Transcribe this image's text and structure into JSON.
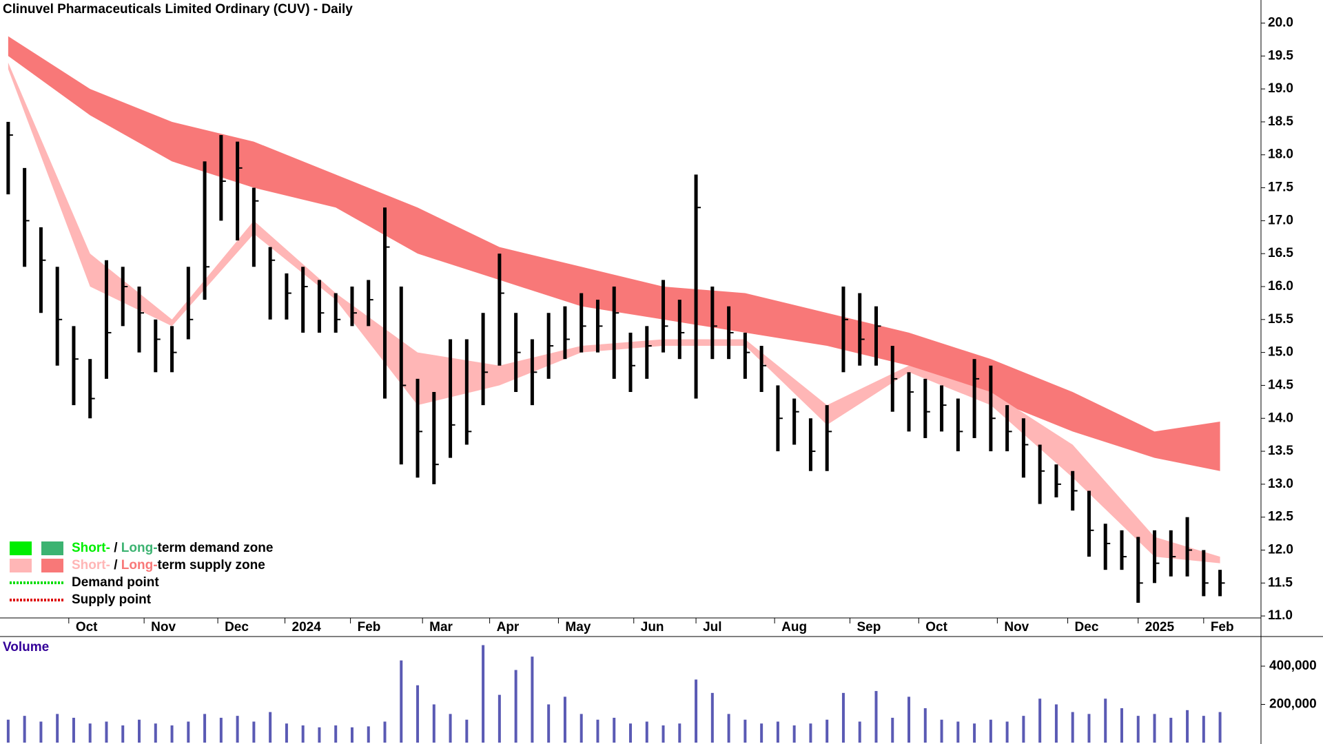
{
  "chart_data": [
    {
      "type": "candlestick",
      "title": "Clinuvel Pharmaceuticals Limited Ordinary (CUV) - Daily",
      "x": [
        0,
        1,
        2,
        3,
        4,
        5,
        6,
        7,
        8,
        9,
        10,
        11,
        12,
        13,
        14,
        15,
        16,
        17,
        18,
        19,
        20,
        21,
        22,
        23,
        24,
        25,
        26,
        27,
        28,
        29,
        30,
        31,
        32,
        33,
        34,
        35,
        36,
        37,
        38,
        39,
        40,
        41,
        42,
        43,
        44,
        45,
        46,
        47,
        48,
        49,
        50,
        51,
        52,
        53,
        54,
        55,
        56,
        57,
        58,
        59,
        60,
        61,
        62,
        63,
        64,
        65,
        66,
        67,
        68,
        69,
        70,
        71,
        72,
        73,
        74
      ],
      "high": [
        18.5,
        17.8,
        16.9,
        16.3,
        15.4,
        14.9,
        16.4,
        16.3,
        16.0,
        15.5,
        15.4,
        16.3,
        17.9,
        18.3,
        18.2,
        17.5,
        16.6,
        16.2,
        16.3,
        16.1,
        15.9,
        16.0,
        16.1,
        17.2,
        16.0,
        14.6,
        14.4,
        15.2,
        15.2,
        15.6,
        16.5,
        15.6,
        15.2,
        15.6,
        15.7,
        15.9,
        15.8,
        16.0,
        15.3,
        15.4,
        16.1,
        15.8,
        17.7,
        16.0,
        15.7,
        15.3,
        15.1,
        14.5,
        14.3,
        14.0,
        14.2,
        16.0,
        15.9,
        15.7,
        15.1,
        14.7,
        14.6,
        14.5,
        14.3,
        14.9,
        14.8,
        14.2,
        14.0,
        13.6,
        13.3,
        13.2,
        12.9,
        12.4,
        12.3,
        12.2,
        12.3,
        12.3,
        12.5,
        12.0,
        11.7
      ],
      "low": [
        17.4,
        16.3,
        15.6,
        14.8,
        14.2,
        14.0,
        14.6,
        15.4,
        15.0,
        14.7,
        14.7,
        15.2,
        15.8,
        17.0,
        16.7,
        16.3,
        15.5,
        15.5,
        15.3,
        15.3,
        15.3,
        15.4,
        15.4,
        14.3,
        13.3,
        13.1,
        13.0,
        13.4,
        13.6,
        14.2,
        14.8,
        14.4,
        14.2,
        14.6,
        14.9,
        15.0,
        15.0,
        14.6,
        14.4,
        14.6,
        15.0,
        14.9,
        14.3,
        14.9,
        14.9,
        14.6,
        14.4,
        13.5,
        13.6,
        13.2,
        13.2,
        14.7,
        14.8,
        14.8,
        14.1,
        13.8,
        13.7,
        13.8,
        13.5,
        13.7,
        13.5,
        13.5,
        13.1,
        12.7,
        12.8,
        12.6,
        11.9,
        11.7,
        11.7,
        11.2,
        11.5,
        11.6,
        11.6,
        11.3,
        11.3
      ],
      "close": [
        18.3,
        17.0,
        16.4,
        15.5,
        14.9,
        14.3,
        15.3,
        16.0,
        15.6,
        15.2,
        15.0,
        15.5,
        16.3,
        17.6,
        17.8,
        17.3,
        16.4,
        15.9,
        16.0,
        15.6,
        15.5,
        15.6,
        15.8,
        16.6,
        14.5,
        13.8,
        13.3,
        13.9,
        13.8,
        14.7,
        15.9,
        15.0,
        14.7,
        15.1,
        15.2,
        15.4,
        15.4,
        15.6,
        14.8,
        15.1,
        15.4,
        15.3,
        17.2,
        15.4,
        15.3,
        15.0,
        14.8,
        14.0,
        14.1,
        13.5,
        13.8,
        15.5,
        15.2,
        15.4,
        14.6,
        14.4,
        14.1,
        14.2,
        13.8,
        14.6,
        14.0,
        13.8,
        13.6,
        13.2,
        13.0,
        12.9,
        12.3,
        12.1,
        11.9,
        11.5,
        11.8,
        11.9,
        12.0,
        11.5,
        11.5
      ],
      "band_x": [
        0,
        5,
        10,
        15,
        20,
        25,
        30,
        35,
        40,
        45,
        50,
        55,
        60,
        65,
        70,
        74
      ],
      "long_band": {
        "color": "#f87878",
        "upper": [
          19.8,
          19.0,
          18.5,
          18.2,
          17.7,
          17.2,
          16.6,
          16.3,
          16.0,
          15.9,
          15.6,
          15.3,
          14.9,
          14.4,
          13.8,
          13.95
        ],
        "lower": [
          19.5,
          18.6,
          17.9,
          17.5,
          17.2,
          16.5,
          16.1,
          15.7,
          15.5,
          15.3,
          15.1,
          14.8,
          14.3,
          13.8,
          13.4,
          13.2
        ]
      },
      "short_band": {
        "color": "#ffb6b6",
        "upper": [
          19.4,
          16.5,
          15.5,
          17.0,
          15.9,
          15.0,
          14.8,
          15.1,
          15.2,
          15.2,
          14.2,
          14.8,
          14.4,
          13.6,
          12.2,
          11.9
        ],
        "lower": [
          19.3,
          16.0,
          15.4,
          16.8,
          15.8,
          14.2,
          14.5,
          15.0,
          15.1,
          15.1,
          13.9,
          14.7,
          14.2,
          13.1,
          11.9,
          11.8
        ]
      },
      "xlim": [
        -0.5,
        76.5
      ],
      "xticks": [
        {
          "value": 3.7,
          "label": "Oct"
        },
        {
          "value": 8.3,
          "label": "Nov"
        },
        {
          "value": 12.8,
          "label": "Dec"
        },
        {
          "value": 16.9,
          "label": "2024"
        },
        {
          "value": 20.9,
          "label": "Feb"
        },
        {
          "value": 25.3,
          "label": "Mar"
        },
        {
          "value": 29.4,
          "label": "Apr"
        },
        {
          "value": 33.6,
          "label": "May"
        },
        {
          "value": 38.2,
          "label": "Jun"
        },
        {
          "value": 42,
          "label": "Jul"
        },
        {
          "value": 46.8,
          "label": "Aug"
        },
        {
          "value": 51.4,
          "label": "Sep"
        },
        {
          "value": 55.6,
          "label": "Oct"
        },
        {
          "value": 60.4,
          "label": "Nov"
        },
        {
          "value": 64.7,
          "label": "Dec"
        },
        {
          "value": 69,
          "label": "2025"
        },
        {
          "value": 73,
          "label": "Feb"
        }
      ],
      "ylim": [
        10.97,
        20.35
      ],
      "yticks": [
        {
          "value": 11,
          "label": "11.0"
        },
        11.5,
        {
          "value": 12,
          "label": "12.0"
        },
        12.5,
        {
          "value": 13,
          "label": "13.0"
        },
        13.5,
        {
          "value": 14,
          "label": "14.0"
        },
        14.5,
        {
          "value": 15,
          "label": "15.0"
        },
        15.5,
        {
          "value": 16,
          "label": "16.0"
        },
        16.5,
        {
          "value": 17,
          "label": "17.0"
        },
        17.5,
        {
          "value": 18,
          "label": "18.0"
        },
        18.5,
        {
          "value": 19,
          "label": "19.0"
        },
        19.5,
        {
          "value": 20,
          "label": "20.0"
        }
      ],
      "legend": [
        {
          "parts": [
            "Short-",
            " / ",
            "Long-",
            "term demand zone"
          ],
          "colors": [
            "#00ee00",
            "#3cb371"
          ]
        },
        {
          "parts": [
            "Short-",
            " / ",
            "Long-",
            "term supply zone"
          ],
          "colors": [
            "#ffb6b6",
            "#f87878"
          ]
        },
        {
          "parts": [
            "Demand point"
          ],
          "colors": [
            "#00dd00"
          ]
        },
        {
          "parts": [
            "Supply point"
          ],
          "colors": [
            "#dd0000"
          ]
        }
      ]
    },
    {
      "type": "bar",
      "title": "Volume",
      "color": "#5a5ab4",
      "values": [
        120000,
        140000,
        110000,
        150000,
        130000,
        100000,
        110000,
        90000,
        120000,
        100000,
        90000,
        110000,
        150000,
        130000,
        140000,
        110000,
        160000,
        100000,
        90000,
        80000,
        90000,
        80000,
        85000,
        110000,
        430000,
        300000,
        200000,
        150000,
        120000,
        510000,
        250000,
        380000,
        450000,
        200000,
        240000,
        150000,
        120000,
        130000,
        100000,
        110000,
        90000,
        100000,
        330000,
        260000,
        150000,
        120000,
        100000,
        110000,
        90000,
        100000,
        120000,
        260000,
        110000,
        270000,
        130000,
        240000,
        180000,
        120000,
        110000,
        100000,
        120000,
        110000,
        140000,
        230000,
        200000,
        160000,
        150000,
        230000,
        180000,
        140000,
        150000,
        130000,
        170000,
        140000,
        160000
      ],
      "ylim": [
        0,
        555000
      ],
      "yticks": [
        {
          "value": 200000,
          "label": "200,000"
        },
        {
          "value": 400000,
          "label": "400,000"
        }
      ]
    }
  ]
}
